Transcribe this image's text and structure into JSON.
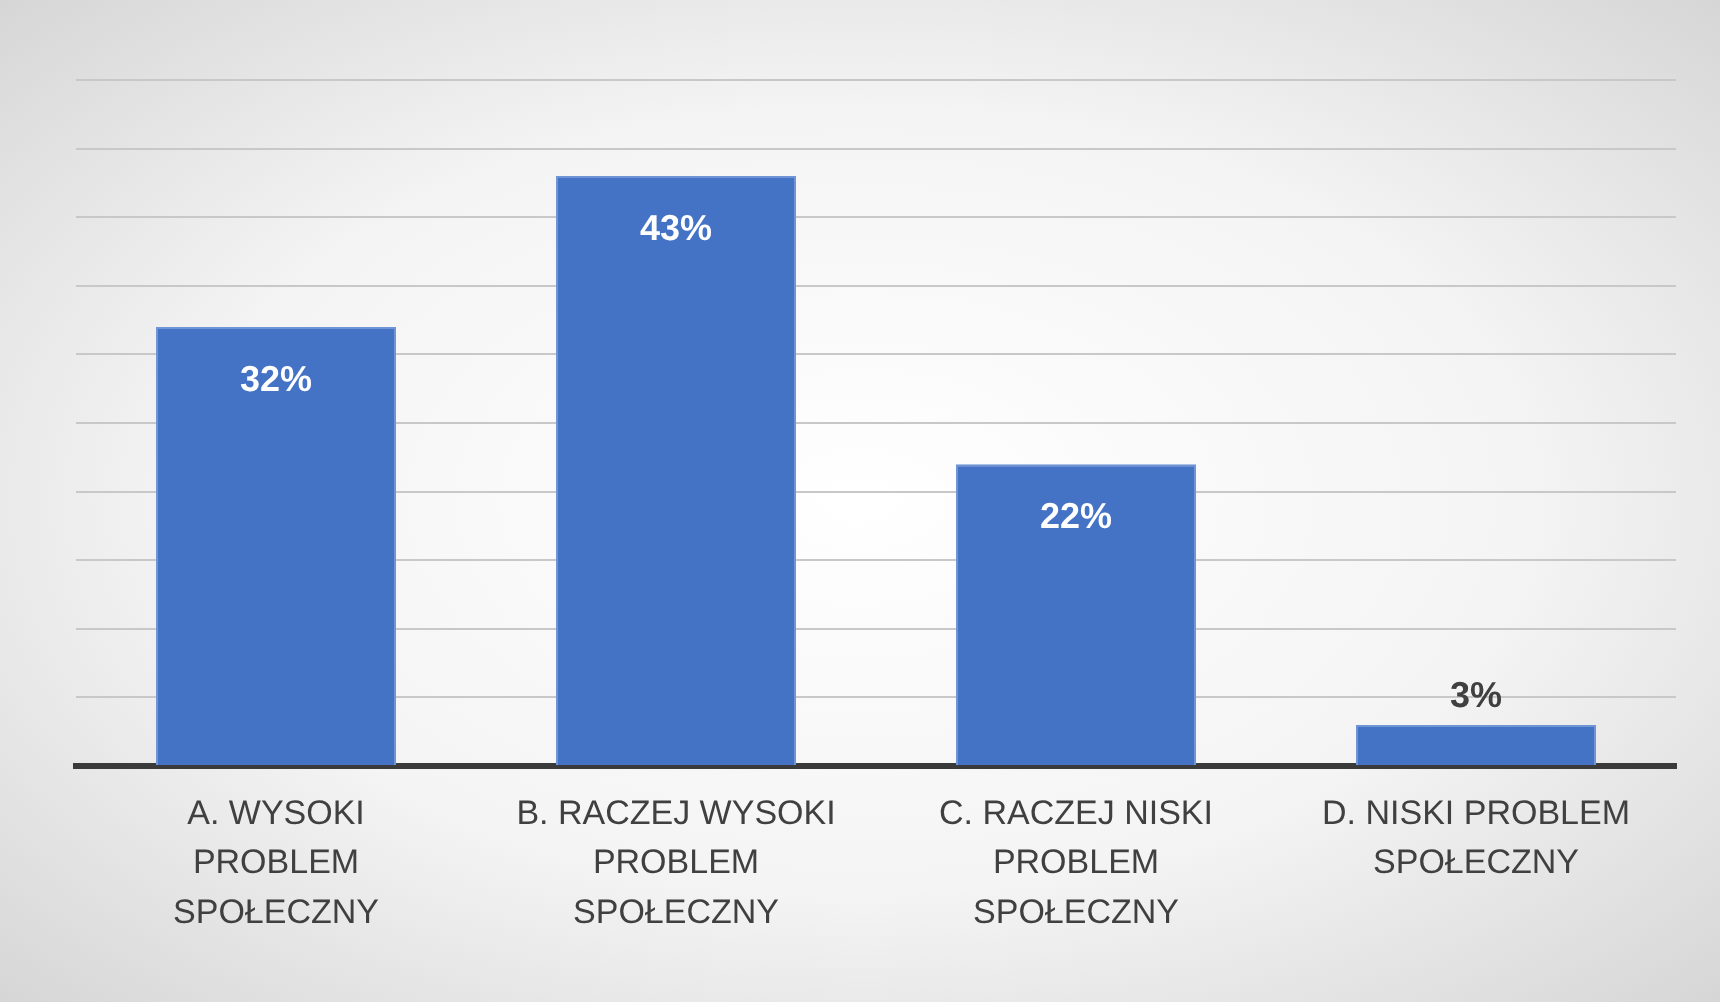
{
  "chart_data": {
    "type": "bar",
    "categories": [
      "A. WYSOKI PROBLEM SPOŁECZNY",
      "B. RACZEJ WYSOKI PROBLEM SPOŁECZNY",
      "C. RACZEJ NISKI PROBLEM SPOŁECZNY",
      "D. NISKI PROBLEM SPOŁECZNY"
    ],
    "values": [
      32,
      43,
      22,
      3
    ],
    "color": "#4472c4",
    "value_labels": [
      "32%",
      "43%",
      "22%",
      "3%"
    ],
    "ylim": [
      0,
      50
    ],
    "yticks": [
      {
        "value": 0,
        "label": null
      },
      {
        "value": 5,
        "label": null
      },
      {
        "value": 10,
        "label": null
      },
      {
        "value": 15,
        "label": null
      },
      {
        "value": 20,
        "label": null
      },
      {
        "value": 25,
        "label": null
      },
      {
        "value": 30,
        "label": null
      },
      {
        "value": 35,
        "label": null
      },
      {
        "value": 40,
        "label": null
      },
      {
        "value": 45,
        "label": null
      },
      {
        "value": 50,
        "label": null
      }
    ],
    "grid": "y",
    "tick_labels": "x"
  }
}
